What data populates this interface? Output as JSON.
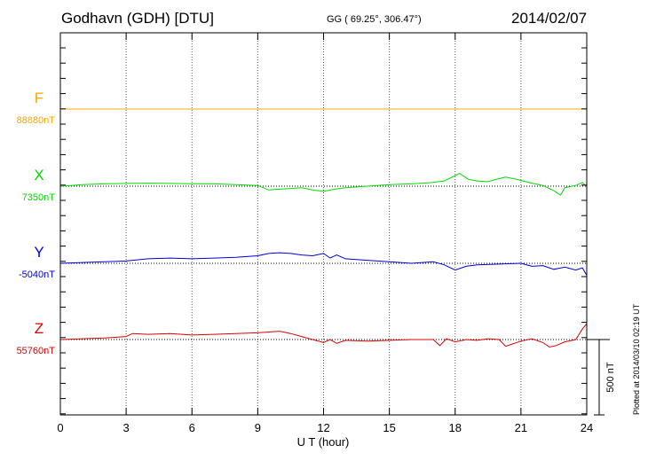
{
  "header": {
    "station": "Godhavn (GDH)  [DTU]",
    "coords": "GG ( 69.25°, 306.47°)",
    "date": "2014/02/07"
  },
  "footnote": "Plotted at 2014/03/10 02:19 UT",
  "chart_data": {
    "type": "line",
    "xlabel": "U T (hour)",
    "xlim": [
      0,
      24
    ],
    "xticks": [
      0,
      3,
      6,
      9,
      12,
      15,
      18,
      21,
      24
    ],
    "grid": true,
    "scale_bar": {
      "label": "500 nT",
      "value": 500
    },
    "series": [
      {
        "name": "F",
        "color": "#ffa500",
        "baseline_label": "88880nT",
        "baseline": 88880,
        "x": [
          0,
          2,
          4,
          6,
          8,
          10,
          12,
          14,
          16,
          18,
          20,
          22,
          24
        ],
        "y": [
          88880,
          88880,
          88880,
          88880,
          88880,
          88880,
          88880,
          88880,
          88880,
          88880,
          88880,
          88880,
          88880
        ]
      },
      {
        "name": "X",
        "color": "#00dd00",
        "baseline_label": "7350nT",
        "baseline": 7350,
        "x": [
          0,
          0.5,
          1,
          2,
          3,
          4,
          5,
          6,
          7,
          8,
          9,
          9.5,
          10,
          10.5,
          11,
          11.5,
          12,
          12.5,
          13,
          14,
          15,
          16,
          16.5,
          17,
          17.5,
          18,
          18.2,
          18.6,
          19,
          19.5,
          20,
          20.3,
          20.8,
          21.5,
          22,
          22.5,
          22.8,
          23,
          23.5,
          23.8,
          24
        ],
        "y": [
          7350,
          7355,
          7360,
          7365,
          7368,
          7370,
          7368,
          7366,
          7365,
          7360,
          7355,
          7325,
          7330,
          7335,
          7340,
          7325,
          7315,
          7330,
          7340,
          7350,
          7360,
          7365,
          7370,
          7375,
          7385,
          7420,
          7435,
          7395,
          7385,
          7380,
          7400,
          7410,
          7395,
          7370,
          7355,
          7320,
          7290,
          7340,
          7355,
          7375,
          7345
        ]
      },
      {
        "name": "Y",
        "color": "#0000dd",
        "baseline_label": "-5040nT",
        "baseline": -5040,
        "x": [
          0,
          1,
          2,
          3,
          4,
          5,
          6,
          7,
          8,
          9,
          9.5,
          10,
          10.5,
          11,
          11.5,
          12,
          12.3,
          12.6,
          13,
          14,
          15,
          16,
          16.5,
          17,
          17.5,
          18,
          18.5,
          19,
          20,
          21,
          21.5,
          22,
          22.5,
          23,
          23.5,
          23.8,
          24
        ],
        "y": [
          -5040,
          -5035,
          -5030,
          -5025,
          -5010,
          -5005,
          -5010,
          -5005,
          -5000,
          -4990,
          -4975,
          -4970,
          -4975,
          -4985,
          -4990,
          -4975,
          -5005,
          -4985,
          -5010,
          -5020,
          -5030,
          -5040,
          -5035,
          -5030,
          -5050,
          -5085,
          -5060,
          -5050,
          -5045,
          -5040,
          -5060,
          -5055,
          -5080,
          -5065,
          -5085,
          -5070,
          -5120
        ]
      },
      {
        "name": "Z",
        "color": "#dd0000",
        "baseline_label": "55760nT",
        "baseline": 55760,
        "x": [
          0,
          1,
          2,
          3,
          3.3,
          4,
          5,
          6,
          7,
          8,
          9,
          10,
          10.5,
          11,
          11.5,
          12,
          12.3,
          12.6,
          13,
          14,
          15,
          16,
          17,
          17.3,
          17.6,
          18,
          18.5,
          19,
          19.5,
          20,
          20.3,
          20.6,
          21,
          21.5,
          22,
          22.3,
          22.6,
          23,
          23.5,
          23.8,
          24
        ],
        "y": [
          55760,
          55765,
          55770,
          55780,
          55800,
          55795,
          55800,
          55790,
          55795,
          55800,
          55805,
          55815,
          55800,
          55780,
          55760,
          55740,
          55760,
          55735,
          55755,
          55750,
          55755,
          55760,
          55760,
          55720,
          55765,
          55745,
          55760,
          55755,
          55765,
          55760,
          55715,
          55730,
          55750,
          55765,
          55740,
          55710,
          55720,
          55745,
          55760,
          55830,
          55865
        ]
      }
    ]
  }
}
